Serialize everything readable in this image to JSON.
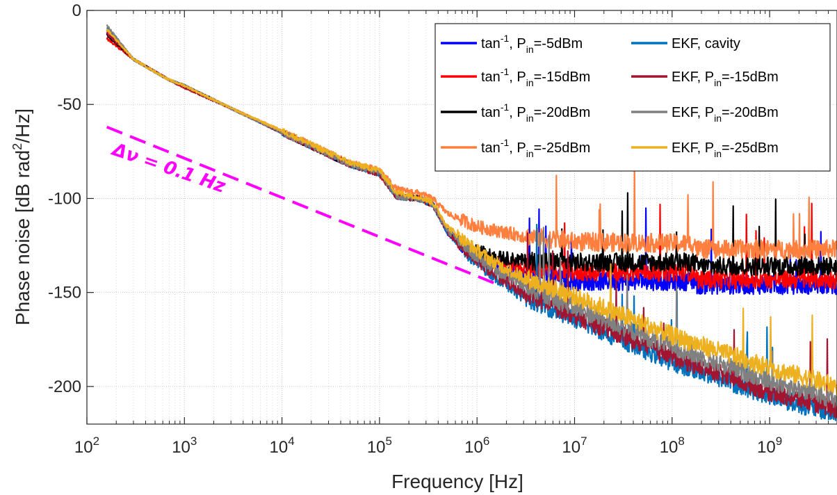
{
  "chart_data": {
    "type": "line",
    "xscale": "log",
    "xlabel": "Frequency [Hz]",
    "ylabel_main": "Phase noise [dB rad",
    "ylabel_sup": "2",
    "ylabel_tail": "/Hz]",
    "xlim": [
      100,
      5000000000
    ],
    "ylim": [
      -220,
      0
    ],
    "grid": true,
    "legend_position": "top-right",
    "x_ticks": [
      {
        "base": "10",
        "exp": "2",
        "value": 100
      },
      {
        "base": "10",
        "exp": "3",
        "value": 1000
      },
      {
        "base": "10",
        "exp": "4",
        "value": 10000
      },
      {
        "base": "10",
        "exp": "5",
        "value": 100000
      },
      {
        "base": "10",
        "exp": "6",
        "value": 1000000
      },
      {
        "base": "10",
        "exp": "7",
        "value": 10000000
      },
      {
        "base": "10",
        "exp": "8",
        "value": 100000000
      },
      {
        "base": "10",
        "exp": "9",
        "value": 1000000000
      }
    ],
    "y_ticks": [
      {
        "label": "0",
        "value": 0
      },
      {
        "label": "-50",
        "value": -50
      },
      {
        "label": "-100",
        "value": -100
      },
      {
        "label": "-150",
        "value": -150
      },
      {
        "label": "-200",
        "value": -200
      }
    ],
    "annotation": {
      "text": "Δν = 0.1 Hz",
      "color": "#ff00ff",
      "line": {
        "x": [
          160,
          1500000
        ],
        "y": [
          -62,
          -145
        ]
      }
    },
    "series": [
      {
        "name": "tan⁻¹, Pᵢₙ=-5dBm",
        "legend_parts": [
          "tan",
          "-1",
          ", P",
          "in",
          "=-5dBm"
        ],
        "color": "#0000ff",
        "x": [
          160,
          300,
          700,
          1000,
          3000,
          10000,
          50000,
          100000,
          150000,
          250000,
          350000,
          500000,
          800000,
          1500000,
          3000000,
          10000000,
          175000000,
          180000000,
          1000000000,
          5000000000
        ],
        "y": [
          -12,
          -26,
          -37,
          -40,
          -52,
          -65,
          -82,
          -86,
          -99,
          -100,
          -103,
          -118,
          -128,
          -135,
          -140,
          -144,
          -144,
          -146,
          -146,
          -146
        ]
      },
      {
        "name": "tan⁻¹, Pᵢₙ=-15dBm",
        "legend_parts": [
          "tan",
          "-1",
          ", P",
          "in",
          "=-15dBm"
        ],
        "color": "#ff0000",
        "x": [
          160,
          300,
          700,
          1000,
          3000,
          10000,
          50000,
          100000,
          150000,
          250000,
          350000,
          500000,
          800000,
          1500000,
          3000000,
          10000000,
          175000000,
          180000000,
          1000000000,
          5000000000
        ],
        "y": [
          -15,
          -26,
          -37,
          -41,
          -52,
          -65,
          -82,
          -87,
          -99,
          -100,
          -103,
          -117,
          -127,
          -133,
          -137,
          -139,
          -139,
          -143,
          -143,
          -143
        ]
      },
      {
        "name": "tan⁻¹, Pᵢₙ=-20dBm",
        "legend_parts": [
          "tan",
          "-1",
          ", P",
          "in",
          "=-20dBm"
        ],
        "color": "#000000",
        "x": [
          160,
          300,
          700,
          1000,
          3000,
          10000,
          50000,
          100000,
          150000,
          250000,
          350000,
          500000,
          800000,
          1500000,
          3000000,
          10000000,
          175000000,
          180000000,
          1000000000,
          5000000000
        ],
        "y": [
          -13,
          -26,
          -37,
          -40,
          -52,
          -65,
          -82,
          -86,
          -99,
          -100,
          -103,
          -117,
          -126,
          -131,
          -133,
          -134,
          -134,
          -136,
          -136,
          -136
        ]
      },
      {
        "name": "tan⁻¹, Pᵢₙ=-25dBm",
        "legend_parts": [
          "tan",
          "-1",
          ", P",
          "in",
          "=-25dBm"
        ],
        "color": "#ff7f3f",
        "x": [
          160,
          300,
          700,
          1000,
          3000,
          10000,
          50000,
          100000,
          150000,
          250000,
          350000,
          500000,
          1000000,
          3000000,
          10000000,
          175000000,
          180000000,
          1000000000,
          5000000000
        ],
        "y": [
          -11,
          -26,
          -37,
          -40,
          -52,
          -64,
          -81,
          -85,
          -95,
          -97,
          -100,
          -108,
          -115,
          -120,
          -123,
          -124,
          -127,
          -127,
          -127
        ]
      },
      {
        "name": "EKF, cavity",
        "legend_parts": [
          "EKF, cavity",
          "",
          "",
          "",
          ""
        ],
        "color": "#0072bd",
        "x": [
          160,
          300,
          700,
          1000,
          3000,
          10000,
          50000,
          100000,
          150000,
          250000,
          350000,
          500000,
          800000,
          1500000,
          3000000,
          10000000,
          100000000,
          1000000000,
          5000000000
        ],
        "y": [
          -9,
          -26,
          -37,
          -40,
          -52,
          -65,
          -82,
          -87,
          -99,
          -100,
          -103,
          -118,
          -130,
          -141,
          -152,
          -164,
          -187,
          -205,
          -215
        ]
      },
      {
        "name": "EKF, Pᵢₙ=-15dBm",
        "legend_parts": [
          "EKF, P",
          "in",
          "=-15dBm",
          "",
          ""
        ],
        "color": "#a2142f",
        "x": [
          160,
          300,
          700,
          1000,
          3000,
          10000,
          50000,
          100000,
          150000,
          250000,
          350000,
          500000,
          800000,
          1500000,
          3000000,
          10000000,
          100000000,
          1000000000,
          5000000000
        ],
        "y": [
          -12,
          -26,
          -37,
          -41,
          -52,
          -65,
          -82,
          -87,
          -99,
          -100,
          -103,
          -118,
          -129,
          -140,
          -150,
          -162,
          -184,
          -203,
          -212
        ]
      },
      {
        "name": "EKF, Pᵢₙ=-20dBm",
        "legend_parts": [
          "EKF, P",
          "in",
          "=-20dBm",
          "",
          ""
        ],
        "color": "#808080",
        "x": [
          160,
          300,
          700,
          1000,
          3000,
          10000,
          50000,
          100000,
          150000,
          250000,
          350000,
          500000,
          800000,
          1500000,
          3000000,
          10000000,
          100000000,
          1000000000,
          5000000000
        ],
        "y": [
          -8,
          -26,
          -37,
          -40,
          -52,
          -65,
          -82,
          -86,
          -99,
          -100,
          -103,
          -117,
          -127,
          -137,
          -146,
          -158,
          -179,
          -197,
          -207
        ]
      },
      {
        "name": "EKF, Pᵢₙ=-25dBm",
        "legend_parts": [
          "EKF, P",
          "in",
          "=-25dBm",
          "",
          ""
        ],
        "color": "#edb120",
        "x": [
          160,
          300,
          700,
          1000,
          3000,
          10000,
          50000,
          100000,
          150000,
          250000,
          350000,
          500000,
          800000,
          1500000,
          3000000,
          10000000,
          100000000,
          1000000000,
          5000000000
        ],
        "y": [
          -10,
          -26,
          -37,
          -40,
          -52,
          -64,
          -81,
          -85,
          -97,
          -99,
          -102,
          -115,
          -124,
          -134,
          -142,
          -152,
          -173,
          -190,
          -200
        ]
      }
    ]
  }
}
